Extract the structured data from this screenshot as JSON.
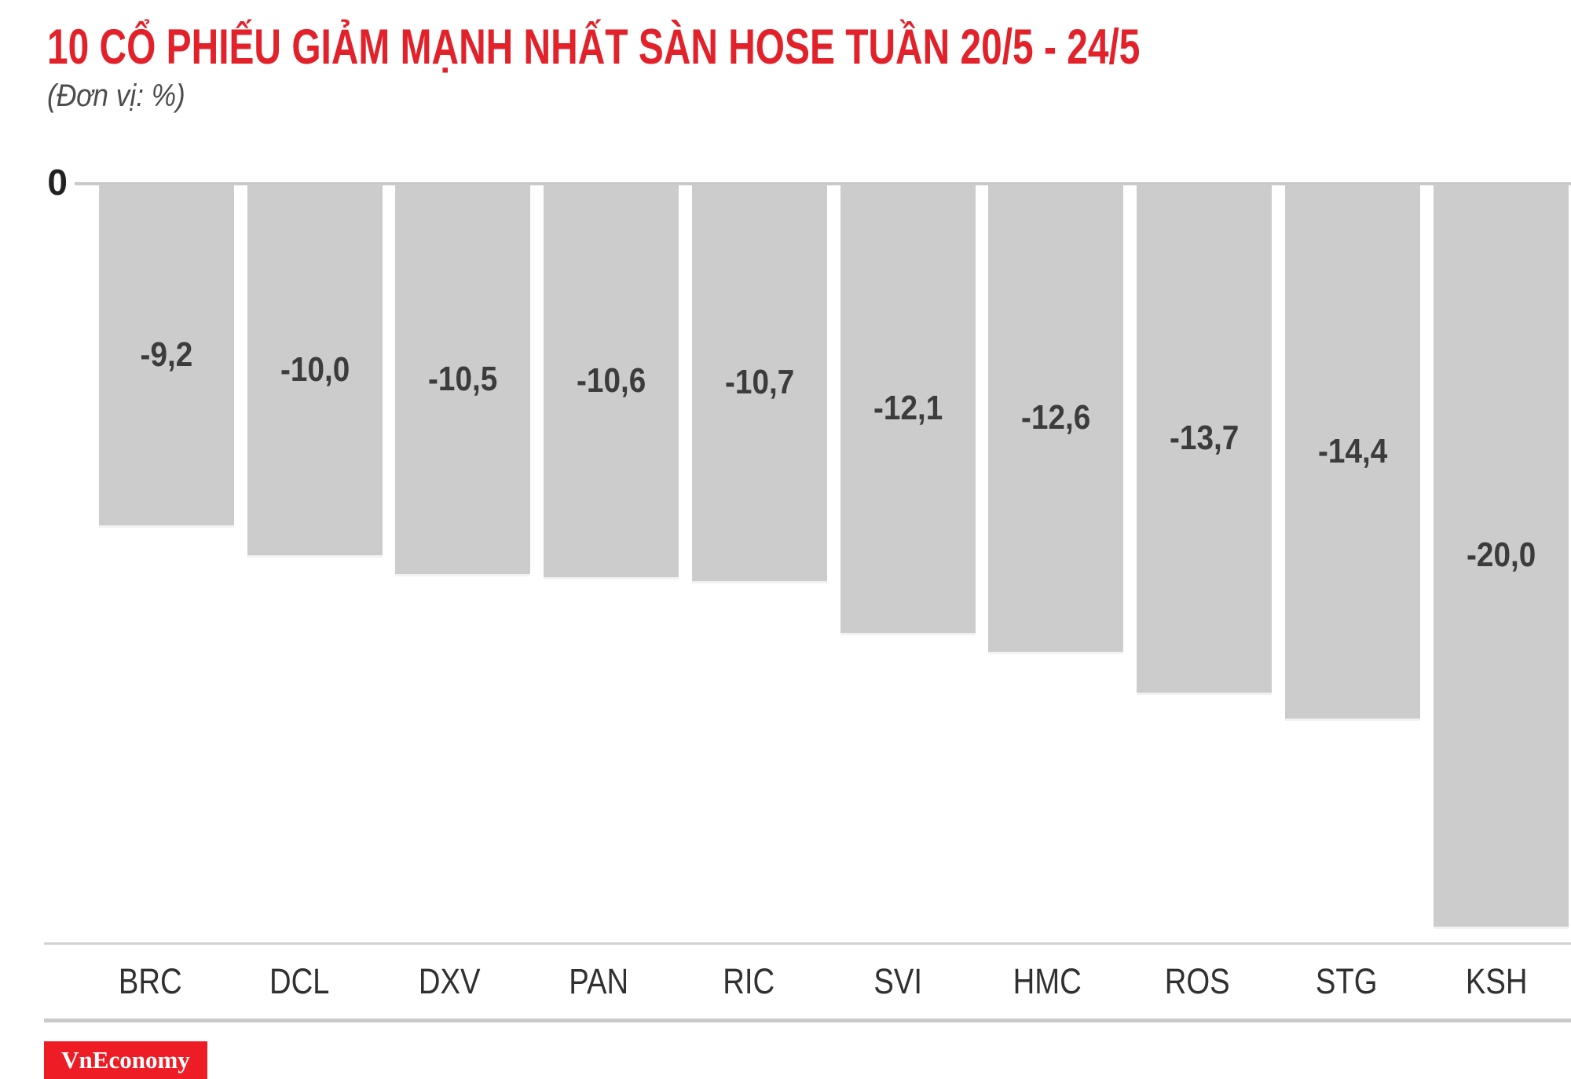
{
  "header": {
    "title": "10 CỔ PHIẾU GIẢM MẠNH NHẤT SÀN HOSE TUẦN 20/5 - 24/5",
    "subtitle": "(Đơn vị: %)"
  },
  "axis": {
    "zero_label": "0"
  },
  "chart_data": {
    "type": "bar",
    "title": "10 CỔ PHIẾU GIẢM MẠNH NHẤT SÀN HOSE TUẦN 20/5 - 24/5",
    "unit": "%",
    "orientation": "vertical-negative",
    "categories": [
      "BRC",
      "DCL",
      "DXV",
      "PAN",
      "RIC",
      "SVI",
      "HMC",
      "ROS",
      "STG",
      "KSH"
    ],
    "values": [
      -9.2,
      -10.0,
      -10.5,
      -10.6,
      -10.7,
      -12.1,
      -12.6,
      -13.7,
      -14.4,
      -20.0
    ],
    "value_labels": [
      "-9,2",
      "-10,0",
      "-10,5",
      "-10,6",
      "-10,7",
      "-12,1",
      "-12,6",
      "-13,7",
      "-14,4",
      "-20,0"
    ],
    "xlabel": "",
    "ylabel": "",
    "ylim": [
      -20.5,
      0
    ],
    "grid": false,
    "legend": false,
    "bar_color": "#cccccc",
    "value_label_color": "#3c3c3c"
  },
  "branding": {
    "logo_text": "VnEconomy",
    "logo_bg": "#ee1c24",
    "logo_text_color": "#ffffff"
  },
  "colors": {
    "title_red": "#e2222b",
    "axis_line": "#c9c9c9",
    "bar_gray": "#cccccc"
  }
}
